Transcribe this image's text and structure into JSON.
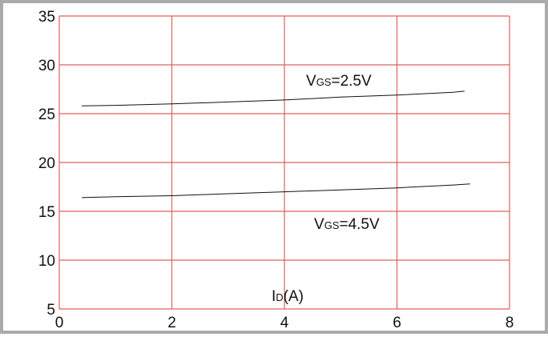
{
  "chart_data": {
    "type": "line",
    "xlim": [
      0,
      8
    ],
    "ylim": [
      5,
      35
    ],
    "x_ticks": [
      "0",
      "2",
      "4",
      "6",
      "8"
    ],
    "y_ticks": [
      "5",
      "10",
      "15",
      "20",
      "25",
      "30",
      "35"
    ],
    "grid": true,
    "colors": {
      "grid": "#e06060",
      "line": "#111111",
      "frame": "#aaaaaa"
    },
    "xlabel": {
      "main": "I",
      "sub": "D",
      "rest": "(A)"
    },
    "series": [
      {
        "label": {
          "main": "V",
          "sub": "GS",
          "rest": "=2.5V"
        },
        "points": [
          [
            0.4,
            25.8
          ],
          [
            1,
            25.85
          ],
          [
            2,
            26.0
          ],
          [
            3,
            26.2
          ],
          [
            4,
            26.4
          ],
          [
            5,
            26.7
          ],
          [
            6,
            26.9
          ],
          [
            7,
            27.2
          ],
          [
            7.2,
            27.3
          ]
        ]
      },
      {
        "label": {
          "main": "V",
          "sub": "GS",
          "rest": "=4.5V"
        },
        "points": [
          [
            0.4,
            16.4
          ],
          [
            1,
            16.5
          ],
          [
            2,
            16.6
          ],
          [
            3,
            16.8
          ],
          [
            4,
            17.0
          ],
          [
            5,
            17.2
          ],
          [
            6,
            17.4
          ],
          [
            7,
            17.7
          ],
          [
            7.3,
            17.8
          ]
        ]
      }
    ]
  }
}
